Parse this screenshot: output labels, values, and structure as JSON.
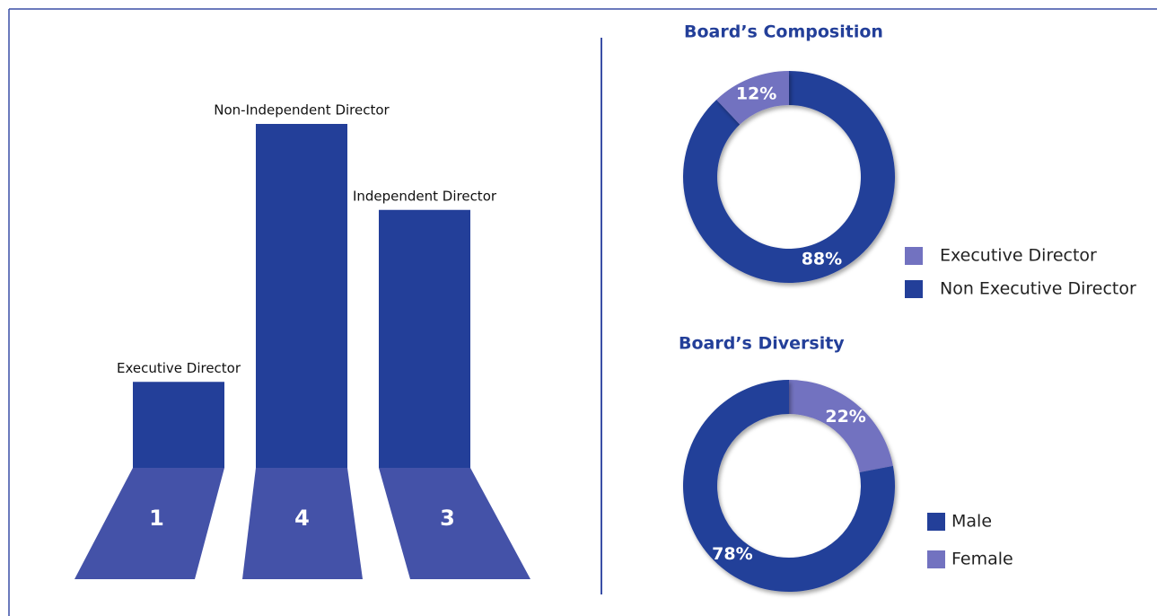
{
  "chart_data": [
    {
      "type": "bar",
      "categories": [
        "Executive Director",
        "Non-Independent Director",
        "Independent Director"
      ],
      "values": [
        1,
        4,
        3
      ],
      "color": "#233f99",
      "base_color": "#4452a8"
    },
    {
      "type": "donut",
      "title": "Board’s Composition",
      "categories": [
        "Executive Director",
        "Non Executive Director"
      ],
      "values": [
        12,
        88
      ],
      "value_labels": [
        "12%",
        "88%"
      ],
      "colors": [
        "#7272c0",
        "#233f99"
      ]
    },
    {
      "type": "donut",
      "title": "Board’s Diversity",
      "categories": [
        "Male",
        "Female"
      ],
      "values": [
        78,
        22
      ],
      "value_labels": [
        "78%",
        "22%"
      ],
      "colors": [
        "#233f99",
        "#7272c0"
      ]
    }
  ]
}
